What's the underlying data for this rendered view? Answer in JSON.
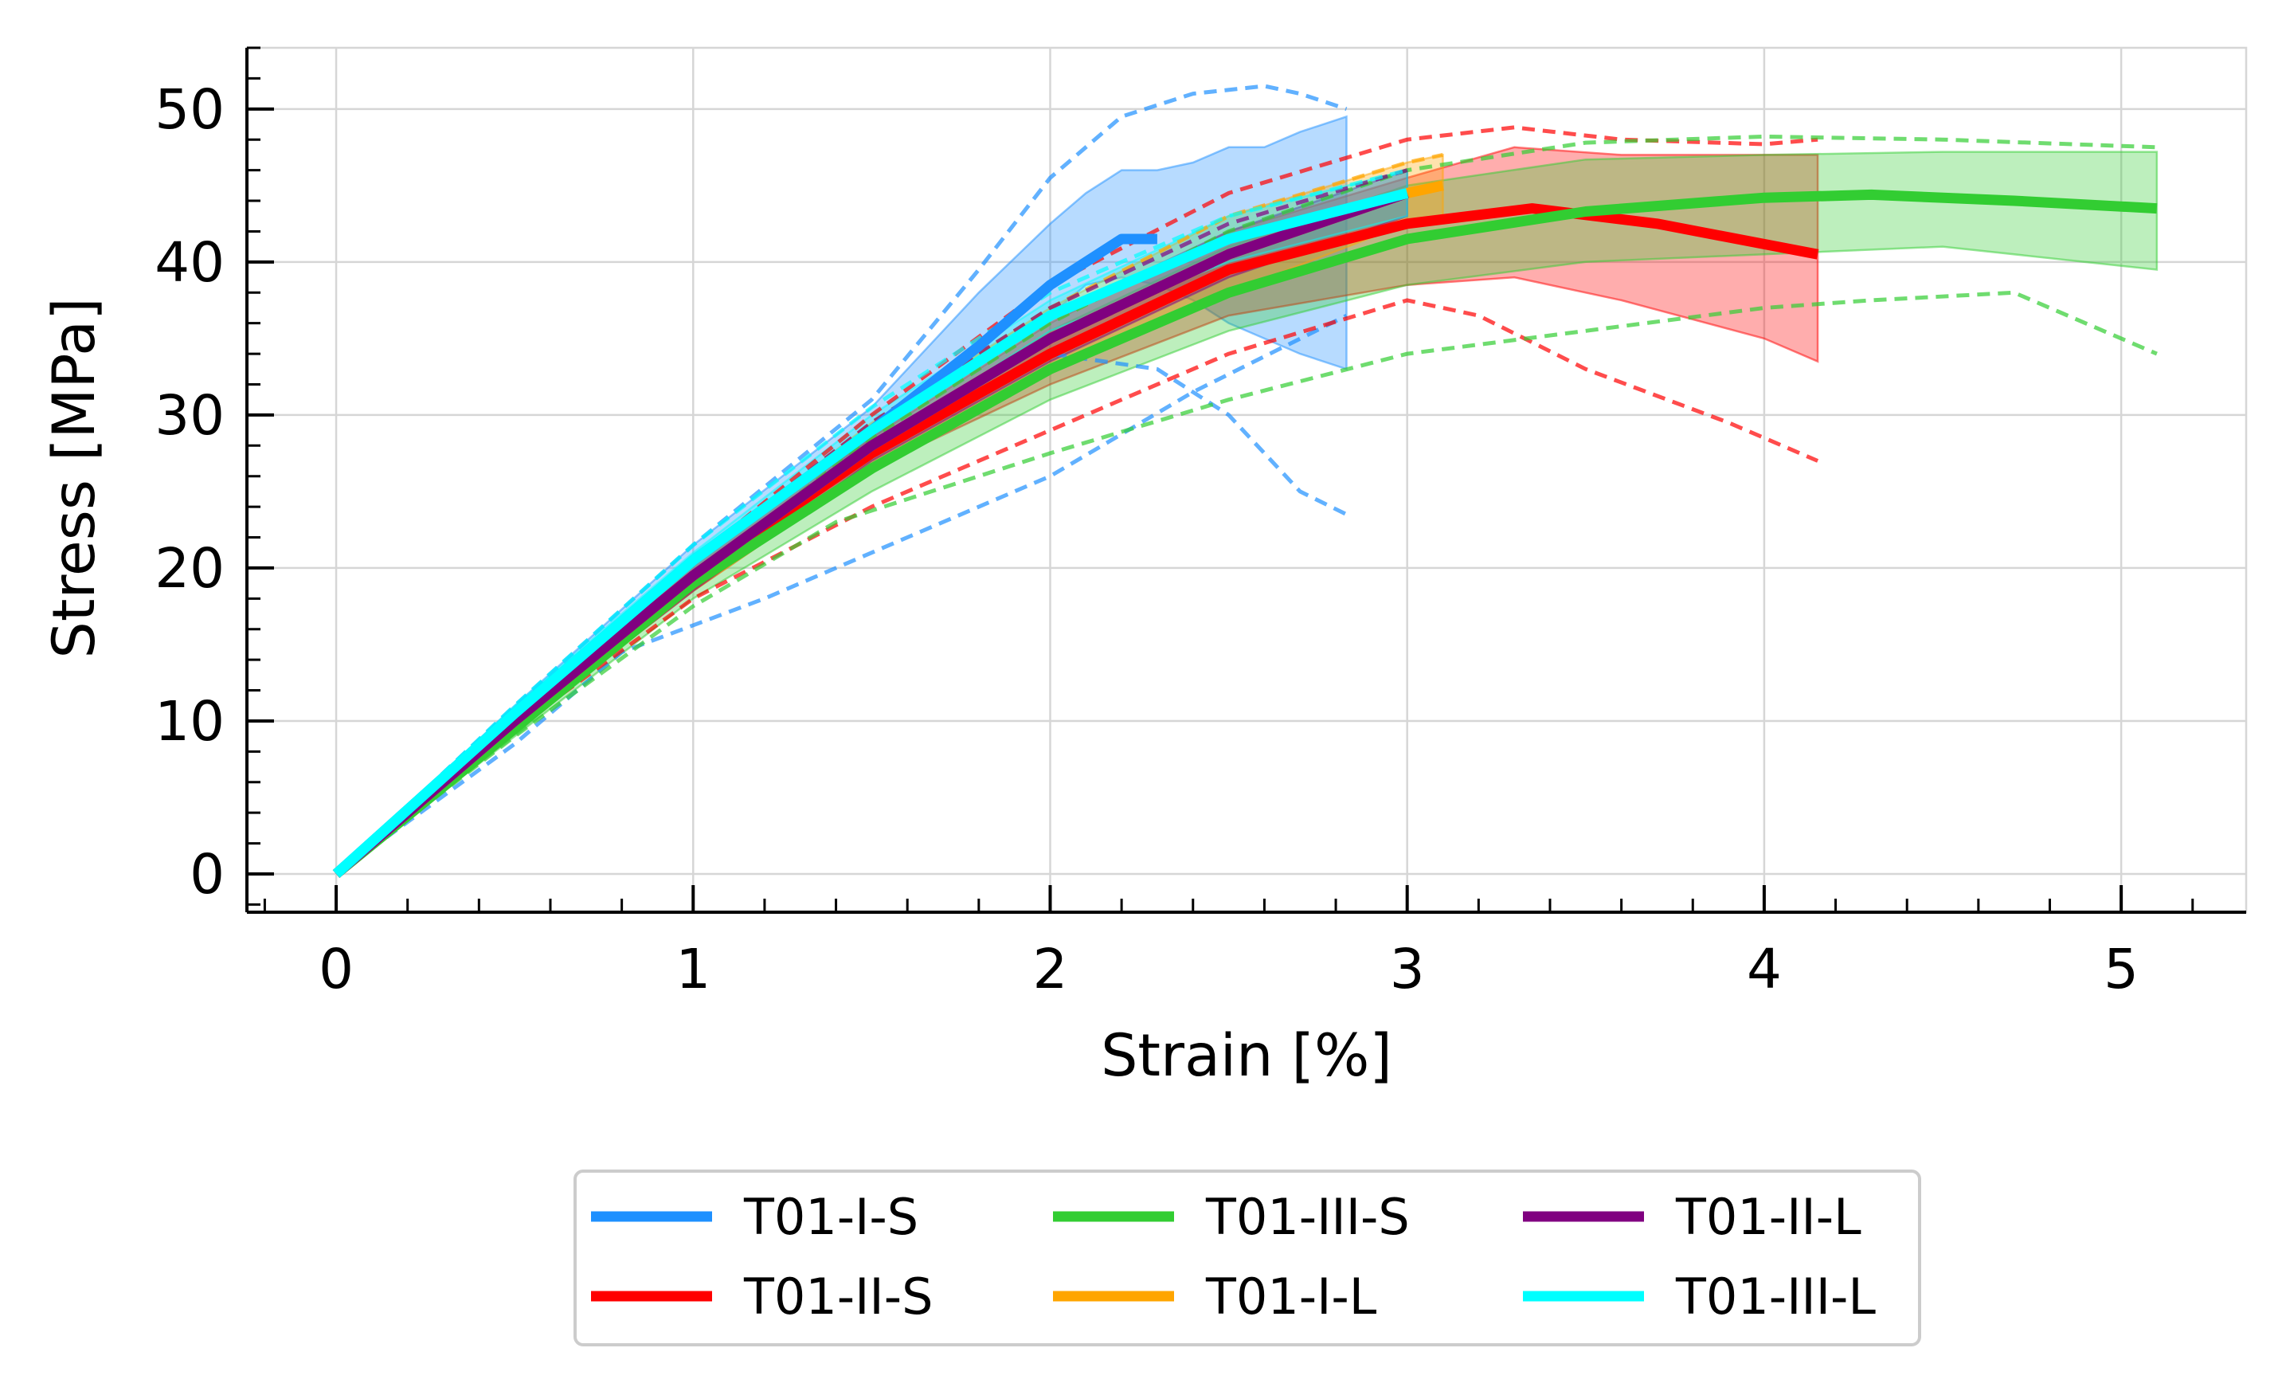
{
  "chart_data": {
    "type": "line",
    "xlabel": "Strain [%]",
    "ylabel": "Stress [MPa]",
    "xlim": [
      -0.25,
      5.35
    ],
    "ylim": [
      -2.5,
      54
    ],
    "xticks": [
      0,
      1,
      2,
      3,
      4,
      5
    ],
    "yticks": [
      0,
      10,
      20,
      30,
      40,
      50
    ],
    "grid": true,
    "legend_position": "bottom-outside",
    "legend_columns": 3,
    "series": [
      {
        "name": "T01-I-S",
        "color": "#1E90FF",
        "x": [
          0,
          0.5,
          1.0,
          1.5,
          1.8,
          2.0,
          2.2,
          2.3
        ],
        "y": [
          0,
          10.5,
          20.5,
          29.0,
          34.5,
          38.5,
          41.5,
          41.5
        ],
        "band": {
          "x": [
            0,
            0.5,
            1.0,
            1.5,
            1.8,
            2.0,
            2.1,
            2.2,
            2.3,
            2.4,
            2.5,
            2.6,
            2.7,
            2.83
          ],
          "upper": [
            0,
            11,
            21.5,
            30.5,
            38,
            42.5,
            44.5,
            46,
            46,
            46.5,
            47.5,
            47.5,
            48.5,
            49.5
          ],
          "lower": [
            0,
            10,
            19.5,
            28.5,
            33.5,
            36.5,
            38.5,
            39,
            38.5,
            37.5,
            36,
            35,
            34,
            33
          ]
        },
        "specimens": [
          {
            "x": [
              0,
              0.5,
              1.0,
              1.5,
              1.8,
              2.0,
              2.2,
              2.4,
              2.6,
              2.7,
              2.83
            ],
            "y": [
              0,
              11,
              21.5,
              31,
              39.5,
              45.5,
              49.5,
              51,
              51.5,
              51,
              50
            ]
          },
          {
            "x": [
              0,
              0.5,
              1.0,
              1.5,
              2.0,
              2.3,
              2.5,
              2.7,
              2.83
            ],
            "y": [
              0,
              10,
              19,
              28,
              34,
              33,
              30,
              25,
              23.5
            ]
          },
          {
            "x": [
              0,
              0.5,
              0.8,
              1.2,
              1.6,
              2.0,
              2.4,
              2.83
            ],
            "y": [
              0,
              8.5,
              14.5,
              18,
              22,
              26,
              31.5,
              36.5
            ]
          }
        ]
      },
      {
        "name": "T01-II-S",
        "color": "#FF0000",
        "x": [
          0,
          0.5,
          1.0,
          1.5,
          2.0,
          2.5,
          3.0,
          3.35,
          3.7,
          4.15
        ],
        "y": [
          0,
          10,
          19.5,
          27.5,
          34,
          39.5,
          42.5,
          43.5,
          42.5,
          40.5
        ],
        "band": {
          "x": [
            0,
            0.5,
            1.0,
            1.5,
            2.0,
            2.5,
            3.0,
            3.3,
            3.6,
            4.0,
            4.15
          ],
          "upper": [
            0,
            10.5,
            20.5,
            28.5,
            36,
            42,
            45.5,
            47.5,
            47,
            47,
            47
          ],
          "lower": [
            0,
            9.5,
            18.5,
            26.5,
            32,
            36.5,
            38.5,
            39,
            37.5,
            35,
            33.5
          ]
        },
        "specimens": [
          {
            "x": [
              0,
              0.5,
              1.0,
              1.5,
              2.0,
              2.5,
              3.0,
              3.3,
              3.6,
              4.0,
              4.15
            ],
            "y": [
              0,
              10.5,
              20.5,
              30,
              38.5,
              44.5,
              48,
              48.8,
              48,
              47.7,
              48
            ]
          },
          {
            "x": [
              0,
              0.5,
              1.0,
              1.5,
              2.0,
              2.5,
              3.0,
              3.2,
              3.5,
              3.9,
              4.15
            ],
            "y": [
              0,
              9.5,
              18,
              24,
              29,
              34,
              37.5,
              36.5,
              33,
              29.5,
              27
            ]
          }
        ]
      },
      {
        "name": "T01-III-S",
        "color": "#32CD32",
        "x": [
          0,
          0.5,
          1.0,
          1.5,
          2.0,
          2.5,
          3.0,
          3.5,
          4.0,
          4.3,
          4.7,
          5.1
        ],
        "y": [
          0,
          9.5,
          19,
          26.5,
          33,
          38,
          41.5,
          43.3,
          44.2,
          44.4,
          44,
          43.5
        ],
        "band": {
          "x": [
            0,
            0.5,
            1.0,
            1.5,
            2.0,
            2.5,
            3.0,
            3.5,
            4.0,
            4.5,
            5.1
          ],
          "upper": [
            0,
            10,
            19.5,
            28,
            35.5,
            41,
            45,
            46.7,
            47,
            47.2,
            47.2
          ],
          "lower": [
            0,
            9,
            18,
            25,
            31,
            35.5,
            38.5,
            40,
            40.5,
            41,
            39.5
          ]
        },
        "specimens": [
          {
            "x": [
              0,
              0.5,
              1.0,
              1.5,
              2.0,
              2.5,
              3.0,
              3.5,
              4.0,
              4.5,
              5.1
            ],
            "y": [
              0,
              10,
              19.5,
              28.5,
              36,
              42,
              46,
              47.8,
              48.2,
              48,
              47.5
            ]
          },
          {
            "x": [
              0,
              0.5,
              1.0,
              1.4,
              2.0,
              2.5,
              3.0,
              3.5,
              4.0,
              4.3,
              4.7,
              5.1
            ],
            "y": [
              0,
              9,
              17.5,
              23,
              27.5,
              31,
              34,
              35.5,
              37,
              37.5,
              38,
              34
            ]
          }
        ]
      },
      {
        "name": "T01-I-L",
        "color": "#FFA500",
        "x": [
          0,
          0.5,
          1.0,
          1.5,
          2.0,
          2.5,
          3.0,
          3.1
        ],
        "y": [
          0,
          10,
          19.5,
          28,
          35,
          40.5,
          44.5,
          45
        ],
        "band": {
          "x": [
            0,
            0.5,
            1.0,
            1.5,
            2.0,
            2.5,
            3.0,
            3.1
          ],
          "upper": [
            0,
            10.5,
            20.5,
            29.5,
            37,
            43,
            46.5,
            47
          ],
          "lower": [
            0,
            9.5,
            18.5,
            26.5,
            33,
            38,
            42.5,
            43
          ]
        },
        "specimens": [
          {
            "x": [
              0,
              0.5,
              1.0,
              1.5,
              2.0,
              2.5,
              3.0,
              3.1
            ],
            "y": [
              0,
              10.5,
              20.5,
              29.5,
              37,
              43,
              46.5,
              47
            ]
          }
        ]
      },
      {
        "name": "T01-II-L",
        "color": "#800080",
        "x": [
          0,
          0.5,
          1.0,
          1.5,
          2.0,
          2.5,
          3.0
        ],
        "y": [
          0,
          10,
          19.5,
          28,
          35,
          40.5,
          44.5
        ],
        "band": {
          "x": [
            0,
            0.5,
            1.0,
            1.5,
            2.0,
            2.5,
            3.0
          ],
          "upper": [
            0,
            10.5,
            20.5,
            29,
            36.5,
            42,
            46
          ],
          "lower": [
            0,
            9.5,
            18.5,
            27,
            33.5,
            39,
            43
          ]
        },
        "specimens": [
          {
            "x": [
              0,
              0.5,
              1.0,
              1.5,
              2.0,
              2.5,
              3.0
            ],
            "y": [
              0,
              10.5,
              20.5,
              29.5,
              37,
              42.5,
              46
            ]
          }
        ]
      },
      {
        "name": "T01-III-L",
        "color": "#00FFFF",
        "x": [
          0,
          0.5,
          1.0,
          1.5,
          2.0,
          2.5,
          3.0
        ],
        "y": [
          0,
          10.5,
          20.5,
          29,
          36.5,
          41.5,
          44.5
        ],
        "band": {
          "x": [
            0,
            0.5,
            1.0,
            1.5,
            2.0,
            2.5,
            3.0
          ],
          "upper": [
            0,
            11,
            21,
            30,
            37.5,
            43,
            46
          ],
          "lower": [
            0,
            10,
            19.5,
            28,
            35.5,
            40,
            43
          ]
        },
        "specimens": [
          {
            "x": [
              0,
              0.5,
              1.0,
              1.5,
              2.0,
              2.5,
              3.0
            ],
            "y": [
              0,
              11,
              21.5,
              30.5,
              38,
              43,
              46
            ]
          }
        ]
      }
    ]
  }
}
